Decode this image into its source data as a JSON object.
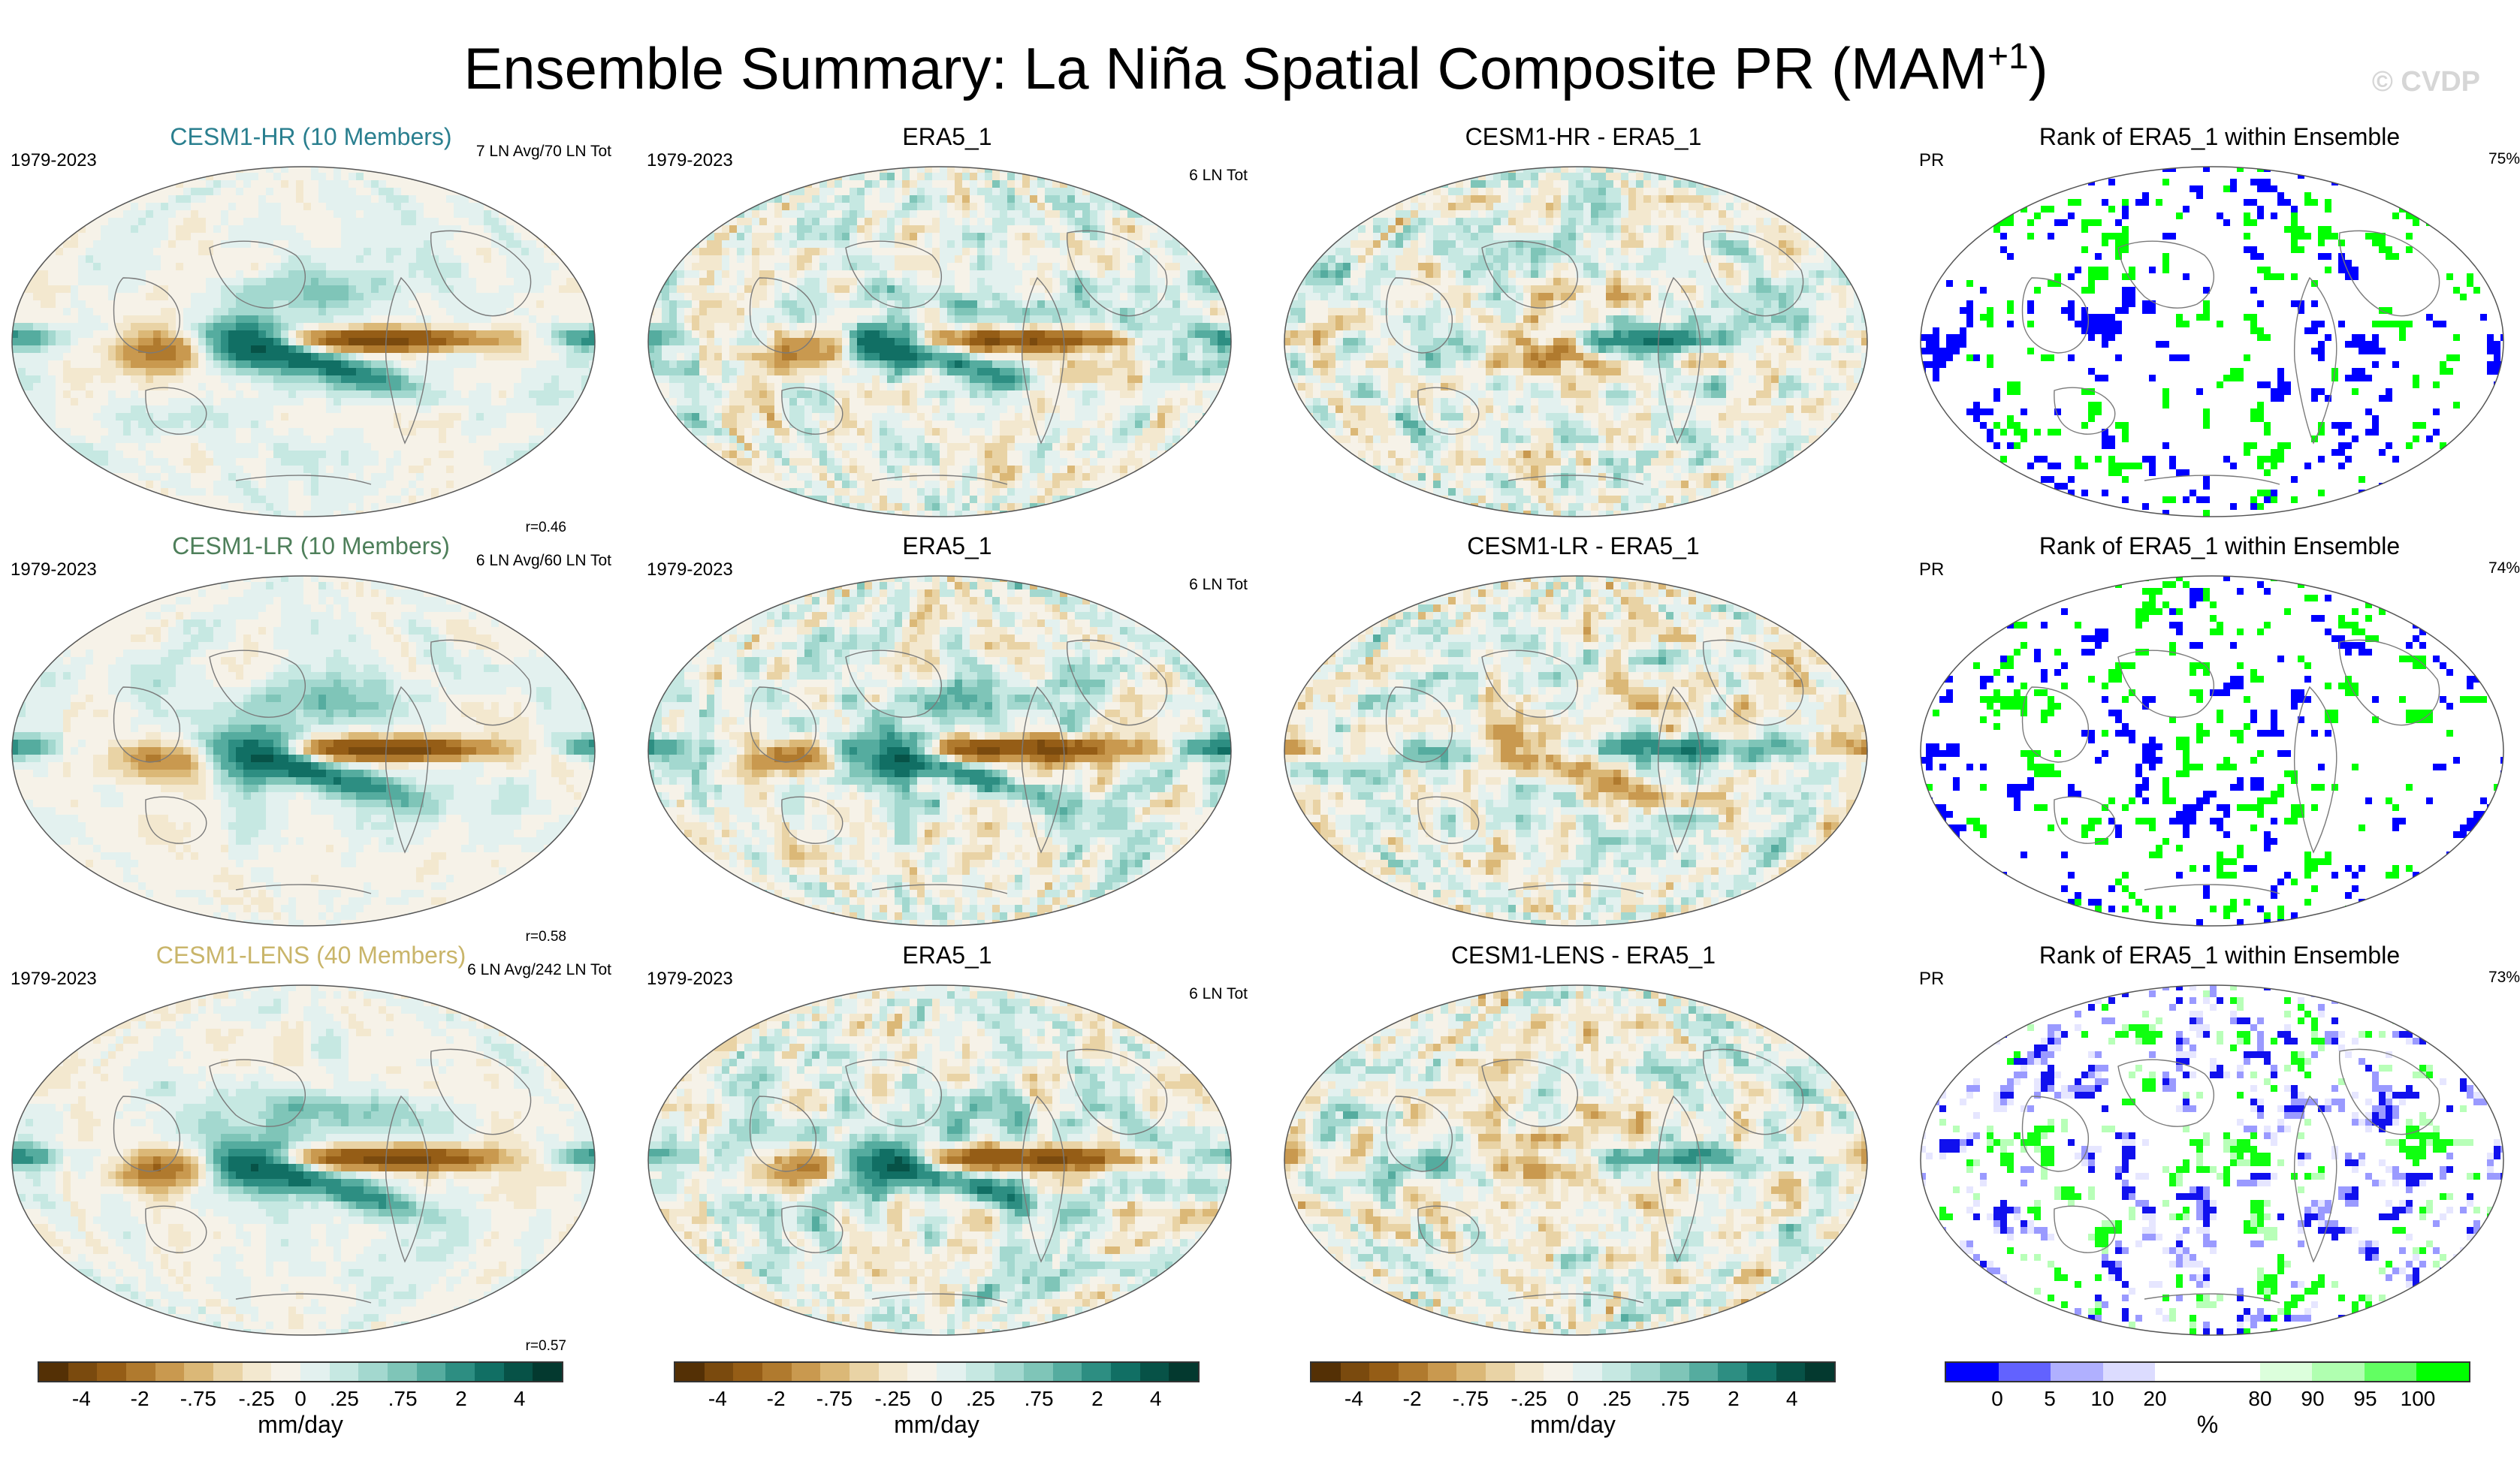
{
  "figure": {
    "title_main": "Ensemble Summary: La Niña Spatial Composite PR (MAM",
    "title_sup": "+1",
    "title_end": ")",
    "watermark": "© CVDP"
  },
  "rows": [
    {
      "ensemble": {
        "title": "CESM1-HR (10 Members)",
        "title_color": "#2a7f8f",
        "period": "1979-2023",
        "count": "7 LN Avg/70 LN Tot",
        "corr": "r=0.46"
      },
      "obs": {
        "title": "ERA5_1",
        "period": "1979-2023",
        "count": "6 LN Tot"
      },
      "diff": {
        "title": "CESM1-HR - ERA5_1"
      },
      "rank": {
        "title": "Rank of ERA5_1 within Ensemble",
        "label": "PR",
        "pct": "75%"
      }
    },
    {
      "ensemble": {
        "title": "CESM1-LR (10 Members)",
        "title_color": "#4e7f5a",
        "period": "1979-2023",
        "count": "6 LN Avg/60 LN Tot",
        "corr": "r=0.58"
      },
      "obs": {
        "title": "ERA5_1",
        "period": "1979-2023",
        "count": "6 LN Tot"
      },
      "diff": {
        "title": "CESM1-LR - ERA5_1"
      },
      "rank": {
        "title": "Rank of ERA5_1 within Ensemble",
        "label": "PR",
        "pct": "74%"
      }
    },
    {
      "ensemble": {
        "title": "CESM1-LENS (40 Members)",
        "title_color": "#c9b56a",
        "period": "1979-2023",
        "count": "6 LN Avg/242 LN Tot",
        "corr": "r=0.57"
      },
      "obs": {
        "title": "ERA5_1",
        "period": "1979-2023",
        "count": "6 LN Tot"
      },
      "diff": {
        "title": "CESM1-LENS - ERA5_1"
      },
      "rank": {
        "title": "Rank of ERA5_1 within Ensemble",
        "label": "PR",
        "pct": "73%"
      }
    }
  ],
  "colorbars": {
    "pr": {
      "unit": "mm/day",
      "ticks": [
        "-4",
        "-2",
        "-.75",
        "-.25",
        "0",
        ".25",
        ".75",
        "2",
        "4"
      ],
      "colors": [
        "#543005",
        "#7a4a0e",
        "#955d16",
        "#b07a2e",
        "#c9994f",
        "#dbb877",
        "#e9d3a5",
        "#f3e8cf",
        "#f6f2e8",
        "#e3f1ef",
        "#c6e8e2",
        "#a3d8cf",
        "#7fc5b8",
        "#55ac9f",
        "#2d8e82",
        "#116f64",
        "#075247",
        "#03392f"
      ]
    },
    "rank": {
      "unit": "%",
      "ticks": [
        "0",
        "5",
        "10",
        "20",
        "80",
        "90",
        "95",
        "100"
      ],
      "colors": [
        "#0000ff",
        "#6262ff",
        "#b0b0ff",
        "#dcdcff",
        "#ffffff",
        "#ffffff",
        "#dcffdc",
        "#b0ffb0",
        "#62ff62",
        "#00ff00"
      ]
    }
  }
}
